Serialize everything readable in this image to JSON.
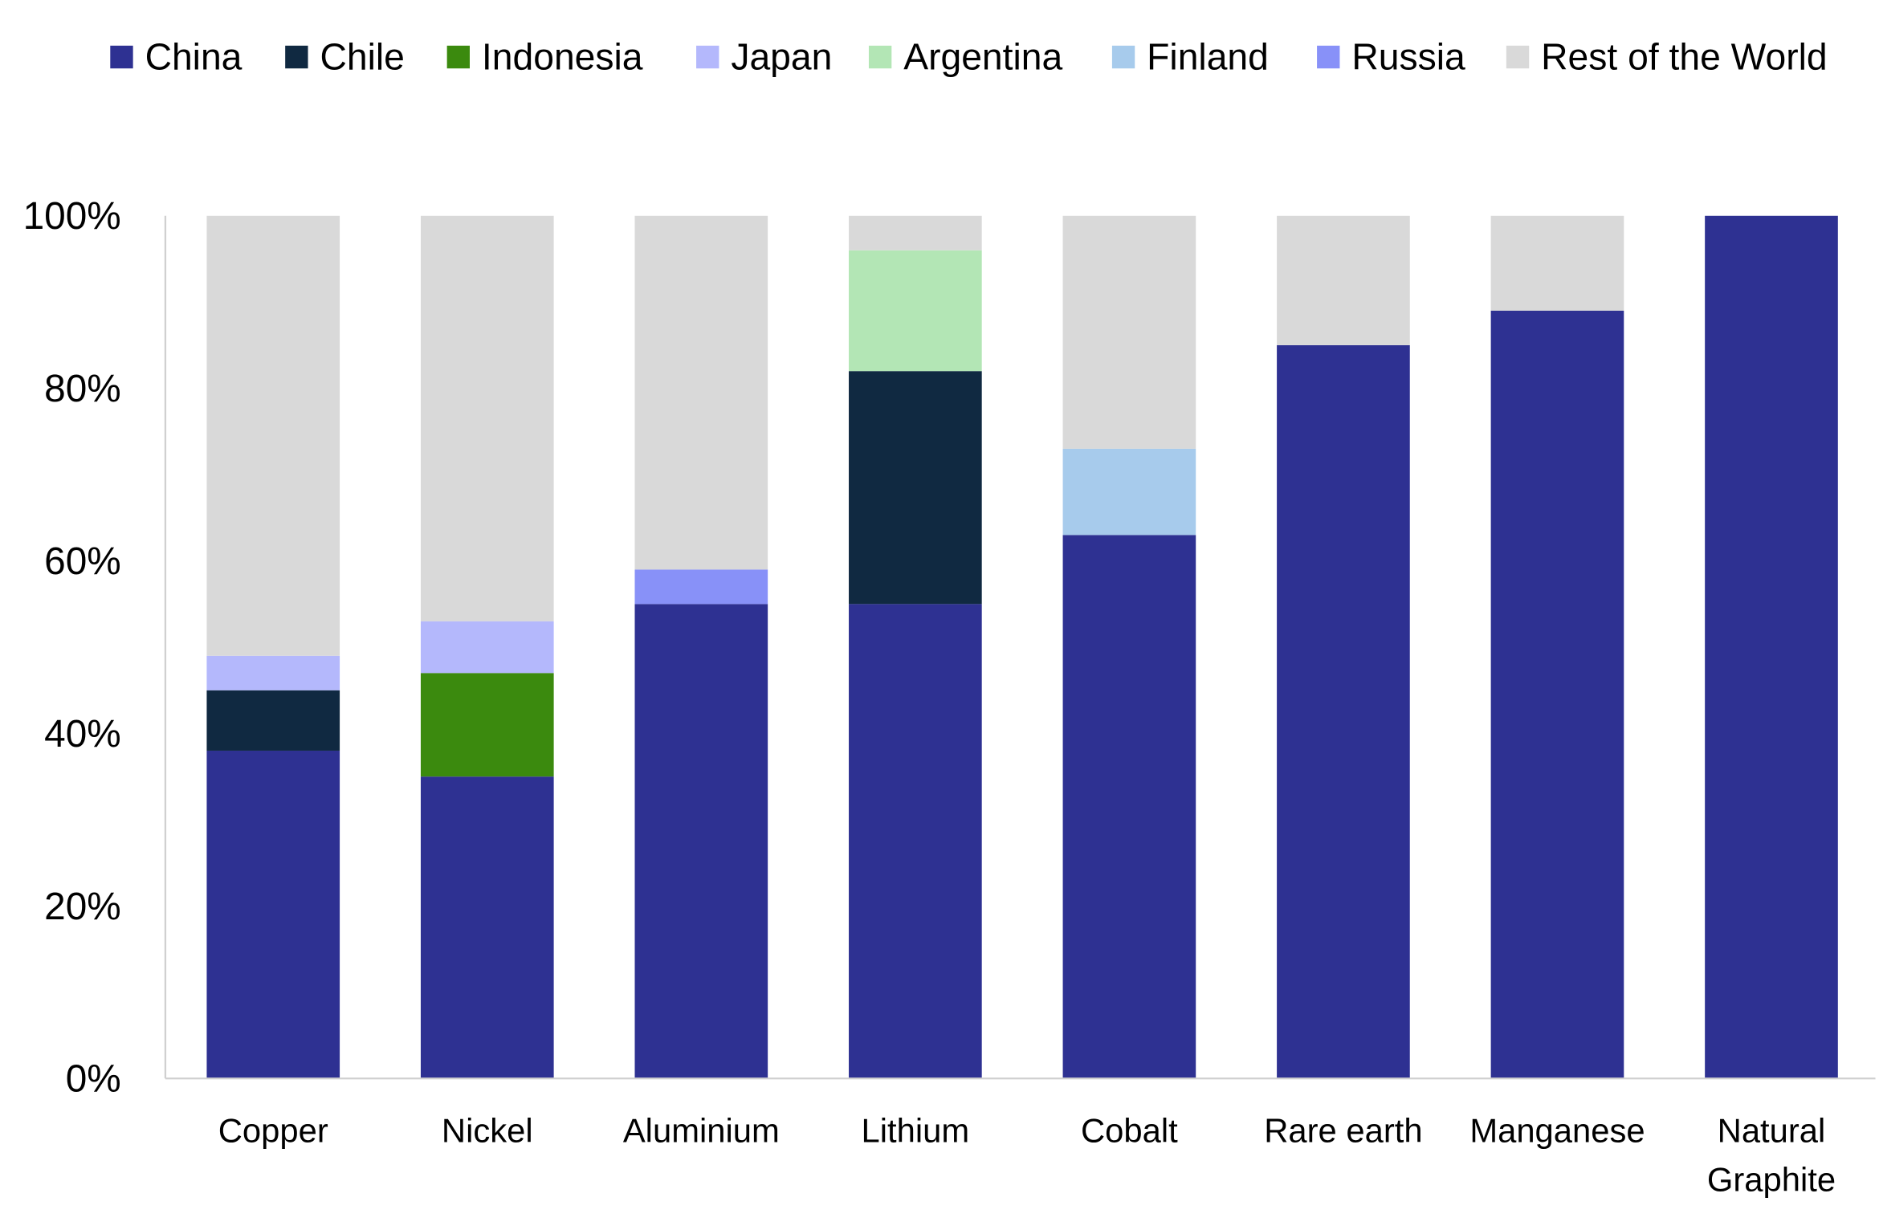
{
  "chart_data": {
    "type": "bar",
    "stacked": true,
    "title": "",
    "xlabel": "",
    "ylabel": "",
    "ylim": [
      0,
      100
    ],
    "y_ticks": [
      "0%",
      "20%",
      "40%",
      "60%",
      "80%",
      "100%"
    ],
    "grid": false,
    "legend_position": "top",
    "categories": [
      "Copper",
      "Nickel",
      "Aluminium",
      "Lithium",
      "Cobalt",
      "Rare earth",
      "Manganese",
      "Natural Graphite"
    ],
    "category_lines": [
      [
        "Copper"
      ],
      [
        "Nickel"
      ],
      [
        "Aluminium"
      ],
      [
        "Lithium"
      ],
      [
        "Cobalt"
      ],
      [
        "Rare earth"
      ],
      [
        "Manganese"
      ],
      [
        "Natural",
        "Graphite"
      ]
    ],
    "series": [
      {
        "name": "China",
        "color": "#2e3192",
        "values": [
          38,
          35,
          55,
          55,
          63,
          85,
          89,
          100
        ]
      },
      {
        "name": "Chile",
        "color": "#102941",
        "values": [
          7,
          0,
          0,
          27,
          0,
          0,
          0,
          0
        ]
      },
      {
        "name": "Indonesia",
        "color": "#3b8a0e",
        "values": [
          0,
          12,
          0,
          0,
          0,
          0,
          0,
          0
        ]
      },
      {
        "name": "Japan",
        "color": "#b4b8fc",
        "values": [
          4,
          6,
          0,
          0,
          0,
          0,
          0,
          0
        ]
      },
      {
        "name": "Argentina",
        "color": "#b3e6b5",
        "values": [
          0,
          0,
          0,
          14,
          0,
          0,
          0,
          0
        ]
      },
      {
        "name": "Finland",
        "color": "#a7cbec",
        "values": [
          0,
          0,
          0,
          0,
          10,
          0,
          0,
          0
        ]
      },
      {
        "name": "Russia",
        "color": "#8891f8",
        "values": [
          0,
          0,
          4,
          0,
          0,
          0,
          0,
          0
        ]
      },
      {
        "name": "Rest of the World",
        "color": "#d9d9d9",
        "values": [
          51,
          47,
          41,
          4,
          27,
          15,
          11,
          0
        ]
      }
    ]
  }
}
